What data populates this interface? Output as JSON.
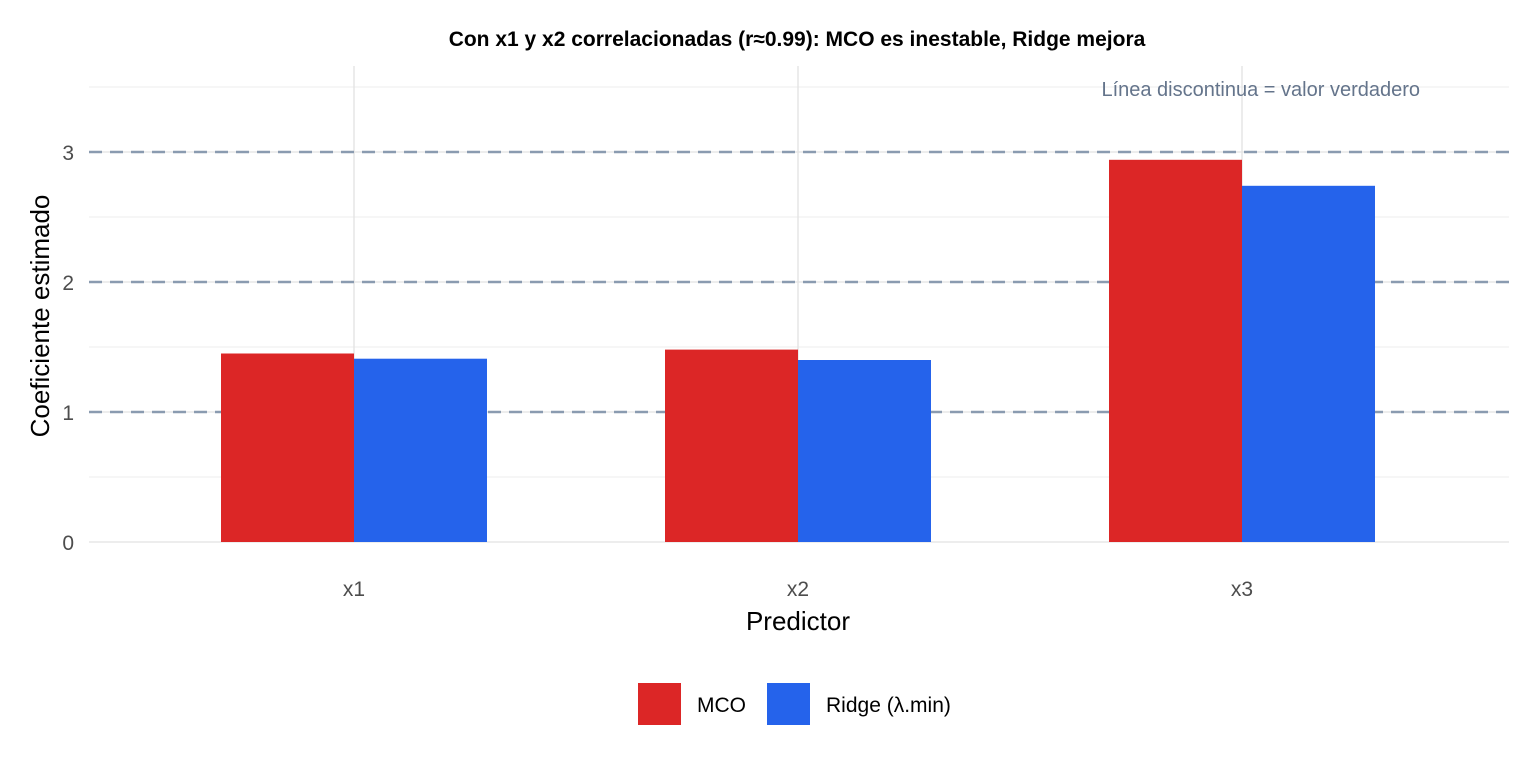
{
  "chart_data": {
    "type": "bar",
    "title": "Con x1 y x2 correlacionadas (r≈0.99): MCO es inestable, Ridge mejora",
    "xlabel": "Predictor",
    "ylabel": "Coeficiente estimado",
    "categories": [
      "x1",
      "x2",
      "x3"
    ],
    "series": [
      {
        "name": "MCO",
        "color": "#dc2626",
        "values": [
          1.45,
          1.48,
          2.94
        ]
      },
      {
        "name": "Ridge (λ.min)",
        "color": "#2563eb",
        "values": [
          1.41,
          1.4,
          2.74
        ]
      }
    ],
    "reference_lines": {
      "values": [
        1,
        2,
        3
      ],
      "color": "#8a9bb0",
      "style": "dashed"
    },
    "annotation": {
      "text": "Línea discontinua = valor verdadero",
      "color": "#64748b",
      "position": "top-right"
    },
    "ylim": [
      0,
      3.5
    ],
    "yticks": [
      0,
      1,
      2,
      3
    ],
    "grid": true,
    "legend_position": "bottom"
  }
}
